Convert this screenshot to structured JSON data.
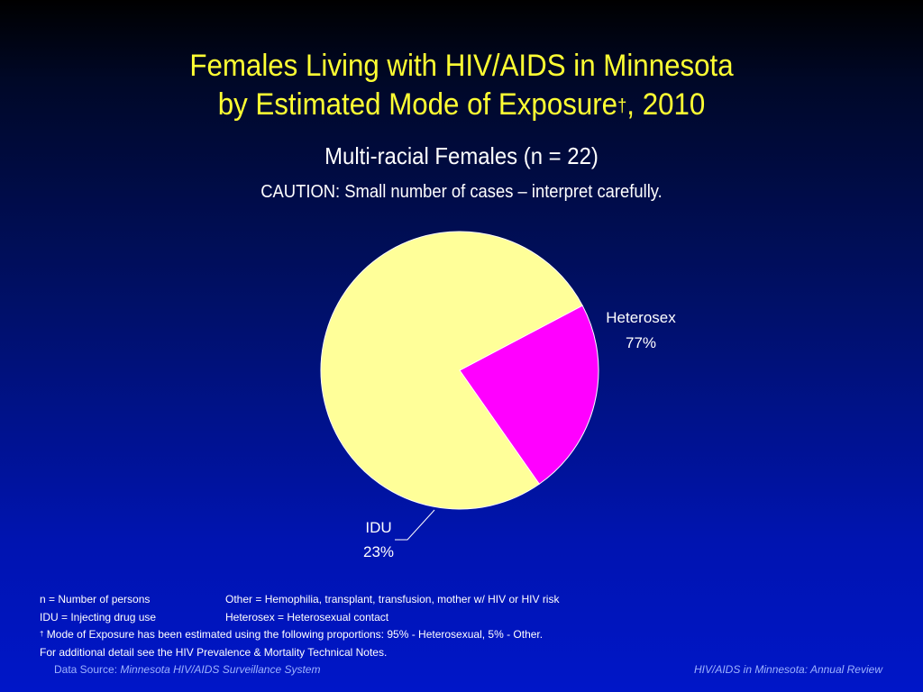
{
  "title": {
    "line1": "Females Living with HIV/AIDS in Minnesota",
    "line2": "by Estimated Mode of Exposure",
    "dagger": "†",
    "line2_suffix": ", 2010"
  },
  "subtitle": "Multi-racial Females (n = 22)",
  "caution": "CAUTION: Small number of cases – interpret carefully.",
  "chart_data": {
    "type": "pie",
    "slices": [
      {
        "label": "Heterosex",
        "value": 77,
        "value_label": "77%",
        "color": "#ffff99"
      },
      {
        "label": "IDU",
        "value": 23,
        "value_label": "23%",
        "color": "#ff00ff"
      }
    ],
    "legend": "none"
  },
  "notes": {
    "n_def": "n = Number of persons",
    "other_def": "Other = Hemophilia, transplant, transfusion, mother w/ HIV or HIV risk",
    "idu_def": "IDU = Injecting drug use",
    "heterosex_def": "Heterosex = Heterosexual contact",
    "dagger": "†",
    "mode_note": " Mode of Exposure has been estimated using the following proportions: 95% - Heterosexual, 5% - Other.",
    "additional": "For additional detail see the HIV Prevalence & Mortality Technical Notes."
  },
  "footer": {
    "data_source_label": "Data Source:",
    "data_source": "Minnesota HIV/AIDS Surveillance System",
    "right": "HIV/AIDS in Minnesota: Annual Review"
  },
  "colors": {
    "title": "#ffff33",
    "background_top": "#000000",
    "background_bottom": "#0016c8",
    "footer_text": "#9db3ff"
  }
}
